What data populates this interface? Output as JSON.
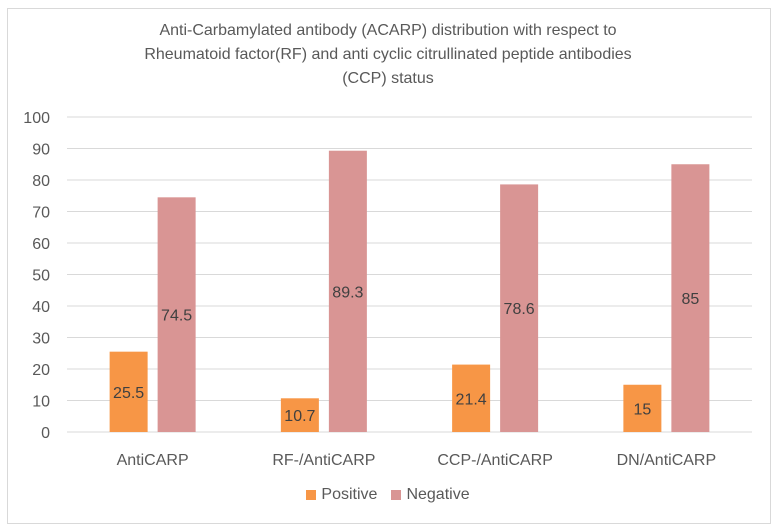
{
  "chart_data": {
    "type": "bar",
    "title_lines": [
      "Anti-Carbamylated antibody (ACARP) distribution with respect to",
      "Rheumatoid factor(RF) and anti cyclic citrullinated peptide antibodies",
      "(CCP) status"
    ],
    "categories": [
      "AntiCARP",
      "RF-/AntiCARP",
      "CCP-/AntiCARP",
      "DN/AntiCARP"
    ],
    "series": [
      {
        "name": "Positive",
        "color": "#f79646",
        "values": [
          25.5,
          10.7,
          21.4,
          15
        ],
        "labels": [
          "25.5",
          "10.7",
          "21.4",
          "15"
        ]
      },
      {
        "name": "Negative",
        "color": "#d99594",
        "values": [
          74.5,
          89.3,
          78.6,
          85
        ],
        "labels": [
          "74.5",
          "89.3",
          "78.6",
          "85"
        ]
      }
    ],
    "ylim": [
      0,
      100
    ],
    "yticks": [
      "0",
      "10",
      "20",
      "30",
      "40",
      "50",
      "60",
      "70",
      "80",
      "90",
      "100"
    ],
    "grid": true,
    "legend_position": "bottom",
    "xlabel": "",
    "ylabel": ""
  }
}
